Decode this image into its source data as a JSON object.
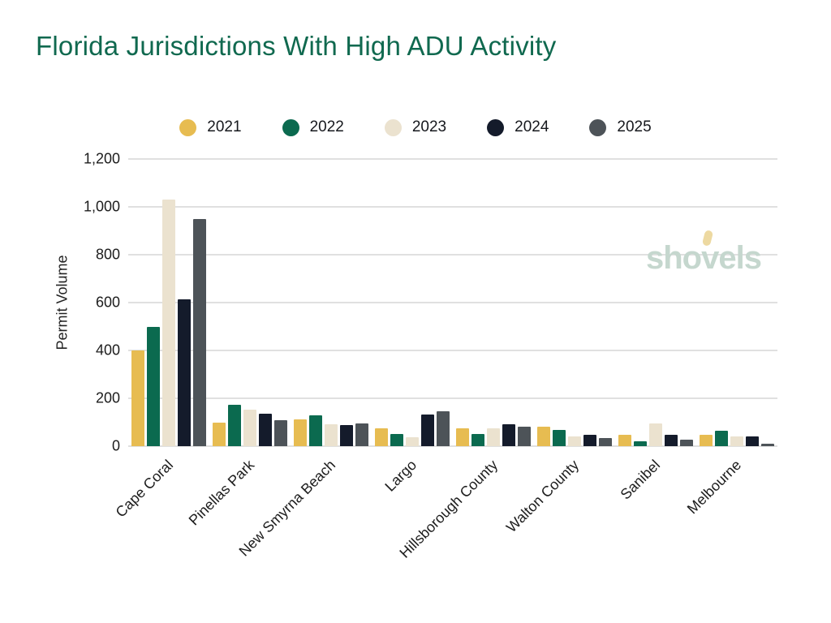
{
  "title": {
    "text": "Florida Jurisdictions With High ADU Activity"
  },
  "y_axis": {
    "label": "Permit Volume"
  },
  "watermark": {
    "text": "shovels"
  },
  "colors": {
    "title": "#10694F",
    "grid": "#E0E0E0",
    "axis_text": "#1C1C1C",
    "watermark": "#C5D7CE",
    "watermark_accent": "#EDD9A1"
  },
  "chart_data": {
    "type": "bar",
    "title": "Florida Jurisdictions With High ADU Activity",
    "xlabel": "",
    "ylabel": "Permit Volume",
    "ylim": [
      0,
      1200
    ],
    "ytick_interval": 200,
    "yticks": [
      "0",
      "200",
      "400",
      "600",
      "800",
      "1,000",
      "1,200"
    ],
    "grid": true,
    "legend_position": "top",
    "categories": [
      "Cape Coral",
      "Pinellas Park",
      "New Smyrna Beach",
      "Largo",
      "Hillsborough County",
      "Walton County",
      "Sanibel",
      "Melbourne"
    ],
    "series": [
      {
        "name": "2021",
        "color": "#E7BC51",
        "values": [
          400,
          100,
          113,
          74,
          73,
          80,
          48,
          48
        ]
      },
      {
        "name": "2022",
        "color": "#0B6A4F",
        "values": [
          500,
          172,
          130,
          50,
          50,
          68,
          20,
          63
        ]
      },
      {
        "name": "2023",
        "color": "#EBE2CF",
        "values": [
          1030,
          152,
          93,
          37,
          75,
          40,
          95,
          40
        ]
      },
      {
        "name": "2024",
        "color": "#141B2B",
        "values": [
          615,
          135,
          87,
          133,
          90,
          47,
          47,
          42
        ]
      },
      {
        "name": "2025",
        "color": "#4D5358",
        "values": [
          950,
          110,
          95,
          145,
          80,
          35,
          28,
          11
        ]
      }
    ]
  }
}
